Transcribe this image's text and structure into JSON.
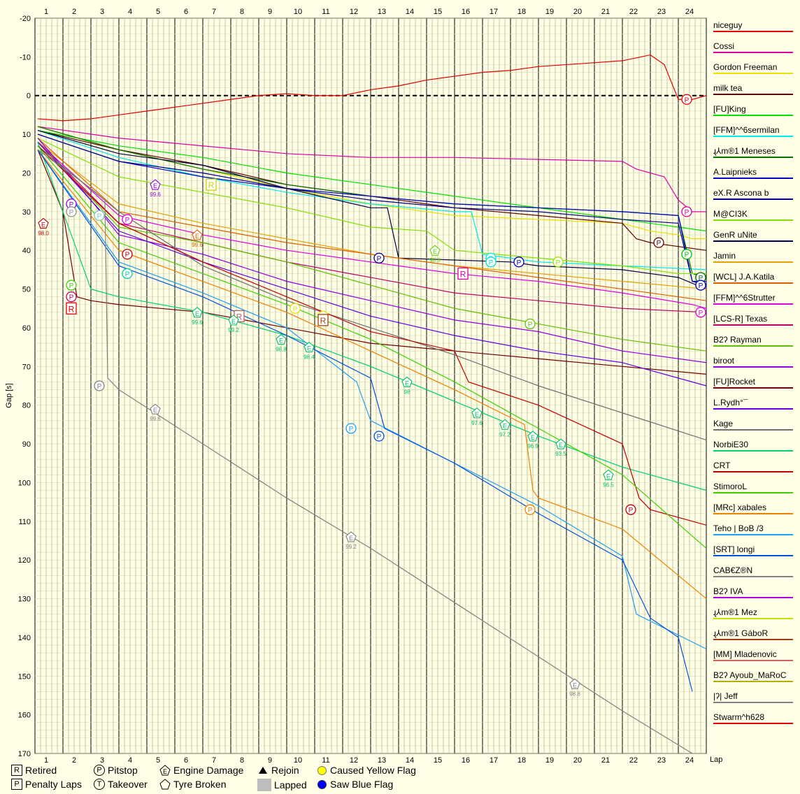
{
  "chart_data": {
    "type": "line",
    "ylabel": "Gap [s]",
    "xlabel": "Lap",
    "xlim": [
      0,
      24
    ],
    "ylim": [
      -20,
      170
    ],
    "y_ticks": [
      "-20",
      "-10",
      "0",
      "10",
      "20",
      "30",
      "40",
      "50",
      "60",
      "70",
      "80",
      "90",
      "100",
      "110",
      "120",
      "130",
      "140",
      "150",
      "160",
      "170"
    ],
    "lap_ticks": [
      "1",
      "2",
      "3",
      "4",
      "5",
      "6",
      "7",
      "8",
      "9",
      "10",
      "11",
      "12",
      "13",
      "14",
      "15",
      "16",
      "17",
      "18",
      "19",
      "20",
      "21",
      "22",
      "23",
      "24"
    ],
    "zero_line": "dashed",
    "grid": true,
    "legend_position": "right",
    "series": [
      {
        "name": "niceguy",
        "color": "#e00000",
        "x": [
          0.1,
          1,
          2,
          3,
          4,
          5,
          6,
          7,
          8,
          9,
          10,
          11,
          12,
          13,
          14,
          15,
          16,
          17,
          18,
          19,
          20,
          21,
          22,
          22.5,
          23,
          23.5,
          24
        ],
        "y": [
          6,
          6.5,
          6,
          5,
          4,
          3,
          2,
          1,
          0,
          -0.5,
          0,
          0,
          -1.5,
          -2.5,
          -4,
          -5,
          -6,
          -6.5,
          -7.5,
          -8,
          -8.5,
          -9,
          -10.5,
          -8,
          1,
          1,
          0
        ]
      },
      {
        "name": "Cossi",
        "color": "#e000a0",
        "x": [
          0.1,
          3,
          6,
          9,
          12,
          15,
          18,
          21,
          21.5,
          22.5,
          23,
          23.5,
          24
        ],
        "y": [
          8,
          11,
          13,
          15,
          16,
          16,
          16.5,
          17,
          19,
          21,
          27,
          30,
          30
        ]
      },
      {
        "name": "Gordon Freeman",
        "color": "#e8e000",
        "x": [
          0.1,
          3,
          6,
          9,
          12,
          15,
          18,
          21,
          22,
          23,
          23.5,
          24
        ],
        "y": [
          8,
          14,
          19,
          24,
          28,
          31,
          32,
          33,
          35,
          36,
          37,
          37
        ]
      },
      {
        "name": "milk tea",
        "color": "#600000",
        "x": [
          0.1,
          3,
          6,
          9,
          12,
          15,
          18,
          21,
          21.5,
          22,
          23,
          24
        ],
        "y": [
          9,
          14,
          18,
          23,
          26,
          29,
          31,
          33,
          37,
          38,
          39,
          40
        ]
      },
      {
        "name": "[FU]King",
        "color": "#00e000",
        "x": [
          0.1,
          3,
          6,
          9,
          12,
          15,
          18,
          21,
          22,
          23,
          24
        ],
        "y": [
          9,
          13,
          16,
          20,
          23,
          26,
          29,
          32,
          33,
          34,
          35
        ]
      },
      {
        "name": "[FFM]^^6sermilan",
        "color": "#00e8e8",
        "x": [
          0.1,
          3,
          6,
          9,
          12,
          15,
          15.6,
          16,
          17,
          18,
          21,
          24
        ],
        "y": [
          9,
          16,
          21,
          25,
          28,
          30,
          30,
          41,
          42,
          43,
          44,
          45
        ]
      },
      {
        "name": "ɻ⅄m®1 Meneses",
        "color": "#007000",
        "x": [
          0.1,
          3,
          6,
          9,
          12,
          15,
          18,
          21,
          23,
          23.5,
          24
        ],
        "y": [
          8,
          14,
          19,
          23,
          26,
          28,
          29,
          30,
          31,
          46,
          47
        ]
      },
      {
        "name": "A.Laipnieks",
        "color": "#0000c0",
        "x": [
          0.1,
          3,
          6,
          9,
          12,
          15,
          18,
          21,
          23,
          23.5,
          24
        ],
        "y": [
          10,
          17,
          21,
          24,
          26,
          28,
          29,
          30,
          31,
          48,
          48
        ]
      },
      {
        "name": "eX.R Ascona b",
        "color": "#00008a",
        "x": [
          0.1,
          3,
          6,
          9,
          12,
          15,
          18,
          21,
          23,
          23.5,
          24
        ],
        "y": [
          10,
          17,
          20,
          24,
          27,
          29,
          30,
          32,
          33,
          48,
          49
        ]
      },
      {
        "name": "M@CI3K",
        "color": "#80e000",
        "x": [
          0.1,
          3,
          6,
          9,
          12,
          14,
          15,
          18,
          21,
          23,
          24
        ],
        "y": [
          11,
          21,
          25,
          29,
          34,
          35,
          40,
          42,
          44,
          46,
          46
        ]
      },
      {
        "name": "GenR uNite",
        "color": "#000040",
        "x": [
          0.1,
          3,
          6,
          9,
          12,
          12.6,
          13,
          17,
          18,
          21,
          22,
          23,
          24
        ],
        "y": [
          9,
          15,
          18,
          24,
          29,
          29,
          42,
          43,
          44,
          45,
          46,
          47,
          50
        ]
      },
      {
        "name": "Jamin",
        "color": "#e8a000",
        "x": [
          0.1,
          3,
          6,
          9,
          12,
          15,
          18,
          21,
          24
        ],
        "y": [
          12,
          28,
          33,
          37,
          41,
          44,
          46,
          48,
          50
        ]
      },
      {
        "name": "[WCL] J.A.Katila",
        "color": "#e06000",
        "x": [
          0.1,
          3,
          6,
          9,
          12,
          15,
          18,
          21,
          24
        ],
        "y": [
          11,
          30,
          34,
          38,
          41,
          44,
          47,
          50,
          53
        ]
      },
      {
        "name": "[FFM]^^6Strutter",
        "color": "#e000e0",
        "x": [
          0.1,
          3,
          6,
          9,
          12,
          15,
          18,
          21,
          23.5,
          24
        ],
        "y": [
          12,
          31,
          36,
          40,
          43,
          46,
          48,
          51,
          54,
          55
        ]
      },
      {
        "name": "[LCS-R] Texas",
        "color": "#c00060",
        "x": [
          0.1,
          3,
          6,
          9,
          12,
          15,
          18,
          21,
          24
        ],
        "y": [
          12,
          33,
          38,
          43,
          47,
          51,
          53,
          55,
          56
        ]
      },
      {
        "name": "B2ʔ Rayman",
        "color": "#60c000",
        "x": [
          0.1,
          3,
          6,
          9,
          12,
          15,
          18,
          21,
          24
        ],
        "y": [
          12,
          34,
          38,
          43,
          49,
          55,
          59,
          63,
          66
        ]
      },
      {
        "name": "biroot",
        "color": "#9000e0",
        "x": [
          0.1,
          2,
          3,
          6,
          9,
          12,
          15,
          18,
          21,
          24
        ],
        "y": [
          11,
          27,
          36,
          41,
          48,
          53,
          58,
          61,
          66,
          69
        ]
      },
      {
        "name": "[FU]Rocket",
        "color": "#700000",
        "x": [
          0.1,
          1,
          1.5,
          2,
          3,
          6,
          9,
          12,
          15,
          18,
          21,
          24
        ],
        "y": [
          14,
          30,
          52,
          53,
          54,
          56,
          60,
          64,
          66,
          68,
          70,
          72
        ]
      },
      {
        "name": "L.Rydh°¯",
        "color": "#6000e0",
        "x": [
          0.1,
          3,
          6,
          9,
          12,
          15,
          18,
          21,
          24
        ],
        "y": [
          12,
          35,
          43,
          50,
          57,
          62,
          66,
          69,
          75
        ]
      },
      {
        "name": "Kage",
        "color": "#707070",
        "x": [
          0.1,
          3,
          6,
          9,
          12,
          15,
          18,
          21,
          24
        ],
        "y": [
          13,
          30,
          44,
          53,
          60,
          67,
          75,
          82,
          89
        ]
      },
      {
        "name": "NorbiE30",
        "color": "#00d070",
        "x": [
          0.1,
          2,
          3,
          6,
          9,
          12,
          15,
          18,
          21,
          24
        ],
        "y": [
          12,
          50,
          52,
          56,
          62,
          70,
          79,
          88,
          96,
          102
        ]
      },
      {
        "name": "CRT",
        "color": "#c00000",
        "x": [
          0.1,
          3,
          6,
          9,
          12,
          15,
          15.5,
          18,
          21,
          21.6,
          22,
          24
        ],
        "y": [
          13,
          33,
          43,
          52,
          61,
          66,
          74,
          80,
          90,
          104,
          107,
          111
        ]
      },
      {
        "name": "StimoroL",
        "color": "#40d000",
        "x": [
          0.1,
          3,
          6,
          9,
          12,
          15,
          18,
          21,
          24
        ],
        "y": [
          13,
          38,
          46,
          54,
          63,
          74,
          86,
          98,
          117
        ]
      },
      {
        "name": "[MRc] xabales",
        "color": "#f08000",
        "x": [
          0.1,
          3,
          6,
          9,
          12,
          15,
          17.5,
          17.8,
          18,
          21,
          24
        ],
        "y": [
          14,
          40,
          48,
          56,
          66,
          76,
          85,
          102,
          104,
          112,
          130
        ]
      },
      {
        "name": "Teho | BoB /3",
        "color": "#20a0f0",
        "x": [
          0.1,
          3,
          6,
          9,
          11.5,
          12,
          15,
          18,
          21,
          21.5,
          24
        ],
        "y": [
          14,
          43,
          51,
          60,
          74,
          84,
          95,
          106,
          119,
          134,
          143
        ]
      },
      {
        "name": "[SRT] longi",
        "color": "#0050e0",
        "x": [
          0.1,
          3,
          6,
          9,
          12,
          12.5,
          15,
          18,
          21,
          22,
          23,
          23.5
        ],
        "y": [
          14,
          44,
          52,
          62,
          73,
          86,
          95,
          108,
          120,
          135,
          140,
          154
        ]
      },
      {
        "name": "CAB€Z®N",
        "color": "#808080",
        "x": [
          0.1,
          2,
          2.5,
          2.6,
          3,
          6,
          9,
          12,
          15,
          18,
          21,
          23.5
        ],
        "y": [
          14,
          24,
          27,
          73,
          76,
          90,
          104,
          117,
          131,
          145,
          159,
          170
        ]
      },
      {
        "name": "B2ʔ IVA",
        "color": "#b000e0",
        "x": [],
        "y": []
      },
      {
        "name": "ɻ⅄m®1 Mez",
        "color": "#c8e000",
        "x": [],
        "y": []
      },
      {
        "name": "ɻ⅄m®1 GáboR",
        "color": "#a04010",
        "x": [],
        "y": []
      },
      {
        "name": "[MM] Mladenovic",
        "color": "#d06060",
        "x": [],
        "y": []
      },
      {
        "name": "B2ʔ Ayoub_MaRoC",
        "color": "#b0b000",
        "x": [],
        "y": []
      },
      {
        "name": "|ʔ| Jeff",
        "color": "#808080",
        "x": [],
        "y": []
      },
      {
        "name": "Stwarm^h628",
        "color": "#e00000",
        "x": [],
        "y": []
      }
    ],
    "markers": [
      {
        "sym": "P",
        "lap": 23.3,
        "gap": 1,
        "color": "#e00000"
      },
      {
        "sym": "P",
        "lap": 23.3,
        "gap": 30,
        "color": "#e000a0"
      },
      {
        "sym": "P",
        "lap": 22.3,
        "gap": 38,
        "color": "#600000"
      },
      {
        "sym": "P",
        "lap": 23.3,
        "gap": 41,
        "color": "#00c000"
      },
      {
        "sym": "P",
        "lap": 12.3,
        "gap": 42,
        "color": "#00008a"
      },
      {
        "sym": "P",
        "lap": 16.3,
        "gap": 42,
        "color": "#00e8e8"
      },
      {
        "sym": "P",
        "lap": 17.3,
        "gap": 43,
        "color": "#0000c0"
      },
      {
        "sym": "P",
        "lap": 18.7,
        "gap": 43,
        "color": "#a0e000"
      },
      {
        "sym": "P",
        "lap": 23.8,
        "gap": 47,
        "color": "#007000"
      },
      {
        "sym": "P",
        "lap": 23.8,
        "gap": 49,
        "color": "#0000c0"
      },
      {
        "sym": "P",
        "lap": 23.8,
        "gap": 56,
        "color": "#e000e0"
      },
      {
        "sym": "P",
        "lap": 17.7,
        "gap": 59,
        "color": "#60c000"
      },
      {
        "sym": "P",
        "lap": 9.3,
        "gap": 55,
        "color": "#e8e000"
      },
      {
        "sym": "P",
        "lap": 10.3,
        "gap": 57,
        "color": "#e8e000"
      },
      {
        "sym": "P",
        "lap": 1.3,
        "gap": 52,
        "color": "#c00060"
      },
      {
        "sym": "P",
        "lap": 1.3,
        "gap": 28,
        "color": "#9000e0"
      },
      {
        "sym": "P",
        "lap": 1.3,
        "gap": 30,
        "color": "#909090"
      },
      {
        "sym": "P",
        "lap": 2.3,
        "gap": 31,
        "color": "#80c0c0"
      },
      {
        "sym": "P",
        "lap": 3.3,
        "gap": 32,
        "color": "#e000e0"
      },
      {
        "sym": "P",
        "lap": 3.3,
        "gap": 41,
        "color": "#c00000"
      },
      {
        "sym": "P",
        "lap": 3.3,
        "gap": 46,
        "color": "#00d0a0"
      },
      {
        "sym": "P",
        "lap": 1.3,
        "gap": 49,
        "color": "#40d000"
      },
      {
        "sym": "P",
        "lap": 2.3,
        "gap": 75,
        "color": "#808080"
      },
      {
        "sym": "P",
        "lap": 11.3,
        "gap": 86,
        "color": "#20a0f0"
      },
      {
        "sym": "P",
        "lap": 12.3,
        "gap": 88,
        "color": "#0050e0"
      },
      {
        "sym": "P",
        "lap": 17.7,
        "gap": 107,
        "color": "#f08000"
      },
      {
        "sym": "P",
        "lap": 21.3,
        "gap": 107,
        "color": "#c00000"
      },
      {
        "sym": "P",
        "lap": 16.3,
        "gap": 43,
        "color": "#00e0d0"
      },
      {
        "sym": "R",
        "lap": 1.3,
        "gap": 55,
        "color": "#e00000"
      },
      {
        "sym": "R",
        "lap": 6.3,
        "gap": 23,
        "color": "#d0d000"
      },
      {
        "sym": "R",
        "lap": 7.3,
        "gap": 57,
        "color": "#c06060"
      },
      {
        "sym": "R",
        "lap": 10.3,
        "gap": 58,
        "color": "#a04010"
      },
      {
        "sym": "R",
        "lap": 15.3,
        "gap": 46,
        "color": "#e000a0"
      },
      {
        "sym": "E",
        "lap": 0.3,
        "gap": 33,
        "color": "#c00000",
        "val": "98.0"
      },
      {
        "sym": "E",
        "lap": 4.3,
        "gap": 23,
        "color": "#9000e0",
        "val": "99.6"
      },
      {
        "sym": "E",
        "lap": 5.8,
        "gap": 36,
        "color": "#e06000",
        "val": "99.6"
      },
      {
        "sym": "E",
        "lap": 5.8,
        "gap": 56,
        "color": "#00c060",
        "val": "99.6"
      },
      {
        "sym": "E",
        "lap": 7.1,
        "gap": 58,
        "color": "#00c060",
        "val": "99.2"
      },
      {
        "sym": "E",
        "lap": 8.8,
        "gap": 63,
        "color": "#00c060",
        "val": "98.8"
      },
      {
        "sym": "E",
        "lap": 9.8,
        "gap": 65,
        "color": "#00c060",
        "val": "98.4"
      },
      {
        "sym": "E",
        "lap": 13.3,
        "gap": 74,
        "color": "#00c060",
        "val": "98"
      },
      {
        "sym": "E",
        "lap": 14.3,
        "gap": 40,
        "color": "#60d000",
        "val": "98.8"
      },
      {
        "sym": "E",
        "lap": 15.8,
        "gap": 82,
        "color": "#00c060",
        "val": "97.6"
      },
      {
        "sym": "E",
        "lap": 16.8,
        "gap": 85,
        "color": "#00c060",
        "val": "97.2"
      },
      {
        "sym": "E",
        "lap": 17.8,
        "gap": 88,
        "color": "#00c060",
        "val": "96.9"
      },
      {
        "sym": "E",
        "lap": 18.8,
        "gap": 90,
        "color": "#00c060",
        "val": "93.5"
      },
      {
        "sym": "E",
        "lap": 20.5,
        "gap": 98,
        "color": "#00c060",
        "val": "96.5"
      },
      {
        "sym": "E",
        "lap": 4.3,
        "gap": 81,
        "color": "#808080",
        "val": "99.6"
      },
      {
        "sym": "E",
        "lap": 11.3,
        "gap": 114,
        "color": "#808080",
        "val": "99.2"
      },
      {
        "sym": "E",
        "lap": 19.3,
        "gap": 152,
        "color": "#808080",
        "val": "98.8"
      }
    ]
  },
  "legend": {
    "retired": "Retired",
    "pitstop": "Pitstop",
    "engine_damage": "Engine Damage",
    "rejoin": "Rejoin",
    "caused_yellow": "Caused Yellow Flag",
    "penalty_laps": "Penalty Laps",
    "takeover": "Takeover",
    "tyre_broken": "Tyre Broken",
    "lapped": "Lapped",
    "saw_blue": "Saw Blue Flag",
    "sym_r": "R",
    "sym_p": "P",
    "sym_t": "T",
    "sym_e": "E"
  }
}
